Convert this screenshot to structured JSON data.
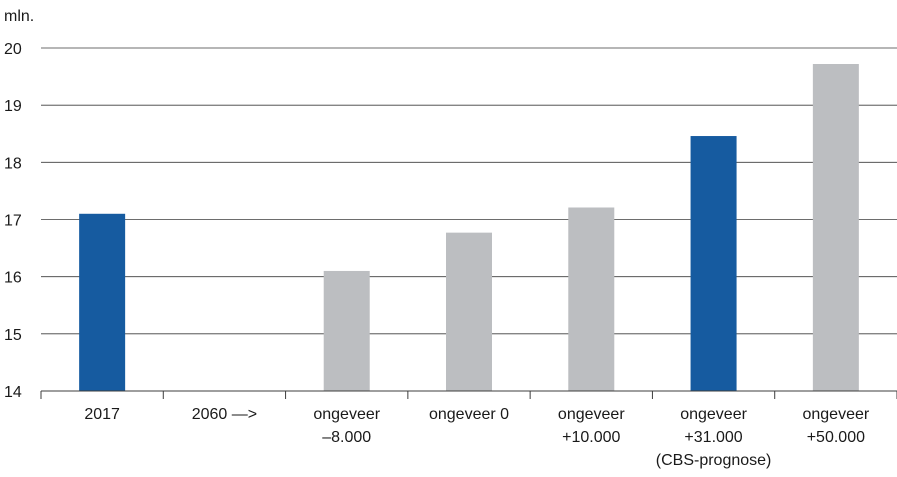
{
  "chart_data": {
    "type": "bar",
    "ylabel": "mln.",
    "ylim": [
      14,
      20
    ],
    "yticks": [
      14,
      15,
      16,
      17,
      18,
      19,
      20
    ],
    "grid": true,
    "categories": [
      [
        "2017"
      ],
      [
        "2060 —>"
      ],
      [
        "ongeveer",
        "–8.000"
      ],
      [
        "ongeveer 0"
      ],
      [
        "ongeveer",
        "+10.000"
      ],
      [
        "ongeveer",
        "+31.000",
        "(CBS-prognose)"
      ],
      [
        "ongeveer",
        "+50.000"
      ]
    ],
    "values": [
      17.1,
      null,
      16.1,
      16.77,
      17.21,
      18.46,
      19.72
    ],
    "colors": [
      "#165ba0",
      null,
      "#bcbec1",
      "#bcbec1",
      "#bcbec1",
      "#165ba0",
      "#bcbec1"
    ]
  }
}
